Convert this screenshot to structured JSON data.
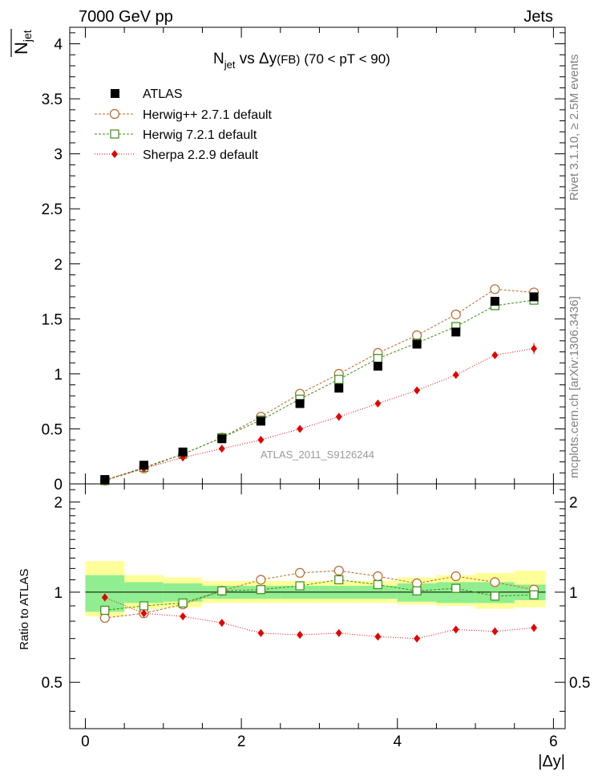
{
  "header": {
    "left": "7000 GeV pp",
    "right": "Jets"
  },
  "side_labels": {
    "rivet": "Rivet 3.1.10, ≥ 2.5M events",
    "mcplots": "mcplots.cern.ch [arXiv:1306.3436]"
  },
  "analysis_id": "ATLAS_2011_S9126244",
  "colors": {
    "atlas": "#000000",
    "herwigpp": "#b8672a",
    "herwig7": "#3d8c14",
    "sherpa": "#e00000",
    "band_inner": "#90ee90",
    "band_outer": "#ffff99"
  },
  "chart_data": [
    {
      "type": "scatter",
      "title_main": "N",
      "title_sub": "jet",
      "title_rest": " vs Δy",
      "title_fb": "(FB)",
      "title_range": "(70 < pT <  90)",
      "ylabel_main": "N",
      "ylabel_sub": "jet",
      "xlabel": "",
      "xlim": [
        -0.2,
        6.15
      ],
      "ylim": [
        0,
        4.15
      ],
      "yticks": [
        0,
        0.5,
        1,
        1.5,
        2,
        2.5,
        3,
        3.5,
        4
      ],
      "ytick_labels": [
        "0",
        "0.5",
        "1",
        "1.5",
        "2",
        "2.5",
        "3",
        "3.5",
        "4"
      ],
      "legend": [
        "ATLAS",
        "Herwig++ 2.7.1 default",
        "Herwig 7.2.1 default",
        "Sherpa 2.2.9 default"
      ],
      "x": [
        0.25,
        0.75,
        1.25,
        1.75,
        2.25,
        2.75,
        3.25,
        3.75,
        4.25,
        4.75,
        5.25,
        5.75
      ],
      "series": [
        {
          "name": "ATLAS",
          "values": [
            0.04,
            0.17,
            0.29,
            0.41,
            0.57,
            0.73,
            0.87,
            1.07,
            1.27,
            1.38,
            1.66,
            1.7
          ]
        },
        {
          "name": "Herwig++ 2.7.1 default",
          "values": [
            0.03,
            0.14,
            0.27,
            0.42,
            0.61,
            0.82,
            1.0,
            1.19,
            1.35,
            1.54,
            1.77,
            1.74
          ]
        },
        {
          "name": "Herwig 7.2.1 default",
          "values": [
            0.03,
            0.15,
            0.27,
            0.42,
            0.58,
            0.77,
            0.95,
            1.14,
            1.28,
            1.43,
            1.62,
            1.67
          ]
        },
        {
          "name": "Sherpa 2.2.9 default",
          "values": [
            0.04,
            0.14,
            0.24,
            0.32,
            0.4,
            0.5,
            0.61,
            0.73,
            0.85,
            0.99,
            1.17,
            1.23
          ]
        }
      ]
    },
    {
      "type": "scatter",
      "ylabel": "Ratio to ATLAS",
      "xlabel": "|Δy|",
      "xlim": [
        -0.2,
        6.15
      ],
      "ylim": [
        0.35,
        2.3
      ],
      "xticks": [
        0,
        2,
        4,
        6
      ],
      "xtick_labels": [
        "0",
        "2",
        "4",
        "6"
      ],
      "yticks": [
        0.5,
        1,
        2
      ],
      "ytick_labels": [
        "0.5",
        "1",
        "2"
      ],
      "bins": [
        [
          0,
          0.5
        ],
        [
          0.5,
          1
        ],
        [
          1,
          1.5
        ],
        [
          1.5,
          2
        ],
        [
          2,
          2.5
        ],
        [
          2.5,
          3
        ],
        [
          3,
          3.5
        ],
        [
          3.5,
          4
        ],
        [
          4,
          4.5
        ],
        [
          4.5,
          5
        ],
        [
          5,
          5.5
        ],
        [
          5.5,
          5.9
        ]
      ],
      "band_inner": [
        [
          0.86,
          1.14
        ],
        [
          0.92,
          1.08
        ],
        [
          0.93,
          1.07
        ],
        [
          0.95,
          1.05
        ],
        [
          0.95,
          1.05
        ],
        [
          0.95,
          1.05
        ],
        [
          0.95,
          1.05
        ],
        [
          0.95,
          1.05
        ],
        [
          0.93,
          1.07
        ],
        [
          0.92,
          1.08
        ],
        [
          0.92,
          1.08
        ],
        [
          0.94,
          1.06
        ]
      ],
      "band_outer": [
        [
          0.83,
          1.27
        ],
        [
          0.88,
          1.14
        ],
        [
          0.89,
          1.12
        ],
        [
          0.92,
          1.09
        ],
        [
          0.92,
          1.09
        ],
        [
          0.92,
          1.09
        ],
        [
          0.92,
          1.09
        ],
        [
          0.92,
          1.09
        ],
        [
          0.91,
          1.12
        ],
        [
          0.9,
          1.14
        ],
        [
          0.88,
          1.16
        ],
        [
          0.89,
          1.18
        ]
      ],
      "x": [
        0.25,
        0.75,
        1.25,
        1.75,
        2.25,
        2.75,
        3.25,
        3.75,
        4.25,
        4.75,
        5.25,
        5.75
      ],
      "series": [
        {
          "name": "Herwig++ 2.7.1 default",
          "values": [
            0.82,
            0.85,
            0.91,
            1.01,
            1.1,
            1.16,
            1.18,
            1.13,
            1.07,
            1.13,
            1.08,
            1.02
          ]
        },
        {
          "name": "Herwig 7.2.1 default",
          "values": [
            0.87,
            0.9,
            0.92,
            1.01,
            1.02,
            1.05,
            1.1,
            1.06,
            1.01,
            1.03,
            0.97,
            0.98
          ]
        },
        {
          "name": "Sherpa 2.2.9 default",
          "values": [
            0.96,
            0.85,
            0.83,
            0.79,
            0.73,
            0.72,
            0.73,
            0.71,
            0.7,
            0.75,
            0.74,
            0.76
          ]
        }
      ]
    }
  ]
}
